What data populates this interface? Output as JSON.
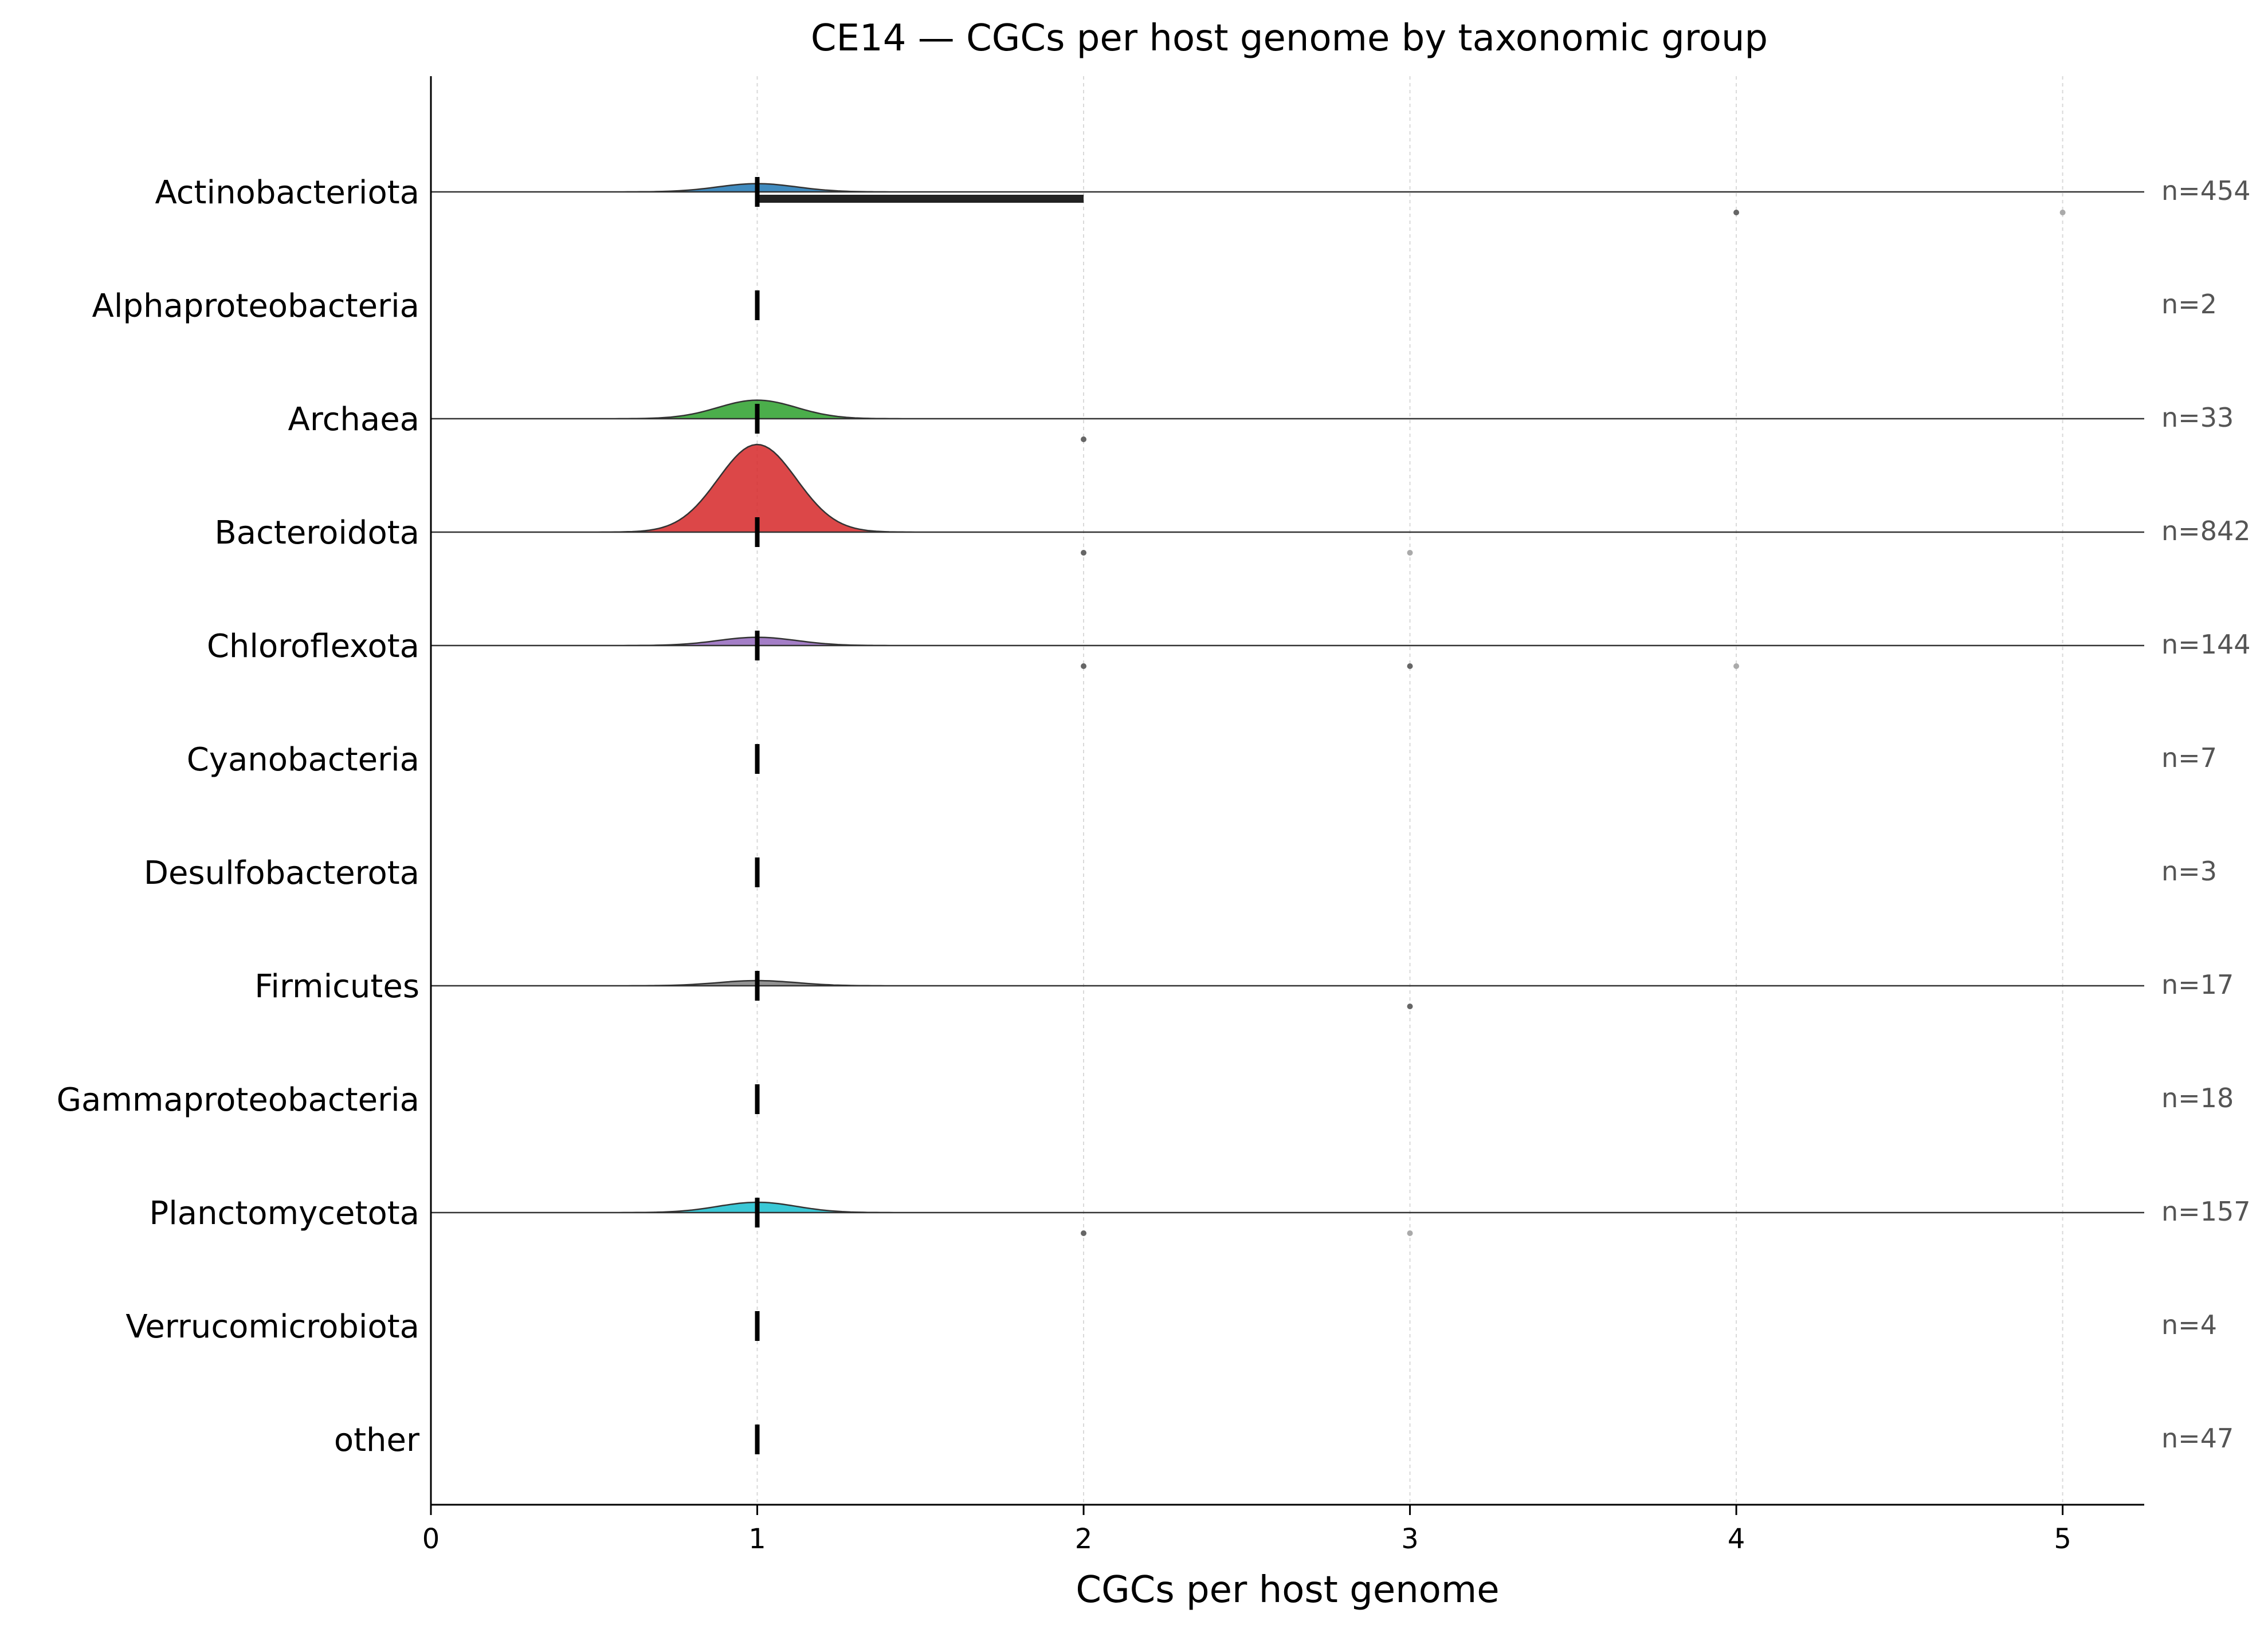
{
  "chart_data": {
    "type": "ridgeline",
    "title": "CE14 — CGCs per host genome by taxonomic group",
    "xlabel": "CGCs per host genome",
    "xlim": [
      0,
      5.25
    ],
    "xticks": [
      0,
      1,
      2,
      3,
      4,
      5
    ],
    "grid": "x, dashed, light",
    "median_marker": "vertical black tick at median",
    "groups": [
      {
        "name": "Actinobacteriota",
        "n_label": "n=454",
        "color": "#1f77b4",
        "median": 1,
        "iqr": [
          1,
          2
        ],
        "peak_height": 0.08,
        "outliers": [
          4,
          5
        ]
      },
      {
        "name": "Alphaproteobacteria",
        "n_label": "n=2",
        "color": "#ff7f0e",
        "median": 1,
        "iqr": null,
        "peak_height": 0,
        "outliers": []
      },
      {
        "name": "Archaea",
        "n_label": "n=33",
        "color": "#2ca02c",
        "median": 1,
        "iqr": null,
        "peak_height": 0.18,
        "outliers": [
          2
        ]
      },
      {
        "name": "Bacteroidota",
        "n_label": "n=842",
        "color": "#d62728",
        "median": 1,
        "iqr": null,
        "peak_height": 0.85,
        "outliers": [
          2,
          3
        ]
      },
      {
        "name": "Chloroflexota",
        "n_label": "n=144",
        "color": "#9467bd",
        "median": 1,
        "iqr": null,
        "peak_height": 0.08,
        "outliers": [
          2,
          3,
          4
        ]
      },
      {
        "name": "Cyanobacteria",
        "n_label": "n=7",
        "color": "#8c564b",
        "median": 1,
        "iqr": null,
        "peak_height": 0,
        "outliers": []
      },
      {
        "name": "Desulfobacterota",
        "n_label": "n=3",
        "color": "#e377c2",
        "median": 1,
        "iqr": null,
        "peak_height": 0,
        "outliers": []
      },
      {
        "name": "Firmicutes",
        "n_label": "n=17",
        "color": "#7f7f7f",
        "median": 1,
        "iqr": null,
        "peak_height": 0.05,
        "outliers": [
          3
        ]
      },
      {
        "name": "Gammaproteobacteria",
        "n_label": "n=18",
        "color": "#bcbd22",
        "median": 1,
        "iqr": null,
        "peak_height": 0,
        "outliers": []
      },
      {
        "name": "Planctomycetota",
        "n_label": "n=157",
        "color": "#17becf",
        "median": 1,
        "iqr": null,
        "peak_height": 0.1,
        "outliers": [
          2,
          3
        ]
      },
      {
        "name": "Verrucomicrobiota",
        "n_label": "n=4",
        "color": "#1f77b4",
        "median": 1,
        "iqr": null,
        "peak_height": 0,
        "outliers": []
      },
      {
        "name": "other",
        "n_label": "n=47",
        "color": "#ff7f0e",
        "median": 1,
        "iqr": null,
        "peak_height": 0,
        "outliers": []
      }
    ]
  }
}
